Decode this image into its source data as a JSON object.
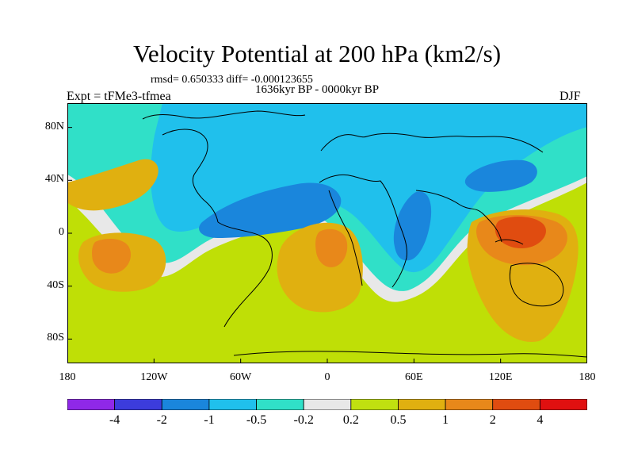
{
  "title": "Velocity Potential at 200 hPa (km2/s)",
  "stats": "rmsd= 0.650333  diff= -0.000123655",
  "period": "1636kyr BP - 0000kyr BP",
  "experiment": "Expt = tFMe3-tfmea",
  "season": "DJF",
  "map": {
    "lat_ticks": [
      {
        "label": "80N",
        "value": 80
      },
      {
        "label": "40N",
        "value": 40
      },
      {
        "label": "0",
        "value": 0
      },
      {
        "label": "40S",
        "value": -40
      },
      {
        "label": "80S",
        "value": -80
      }
    ],
    "lon_ticks": [
      {
        "label": "180",
        "value": -180
      },
      {
        "label": "120W",
        "value": -120
      },
      {
        "label": "60W",
        "value": -60
      },
      {
        "label": "0",
        "value": 0
      },
      {
        "label": "60E",
        "value": 60
      },
      {
        "label": "120E",
        "value": 120
      },
      {
        "label": "180",
        "value": 180
      }
    ],
    "background_color": "#bfdf06"
  },
  "colorbar": {
    "colors": [
      "#8f28e8",
      "#3c3cdc",
      "#1a86dc",
      "#20c0ec",
      "#30e0c8",
      "#e8e8e8",
      "#c0e010",
      "#e0b010",
      "#e8881a",
      "#e04c10",
      "#e01010"
    ],
    "labels": [
      "-4",
      "-2",
      "-1",
      "-0.5",
      "-0.2",
      "0.2",
      "0.5",
      "1",
      "2",
      "4"
    ]
  }
}
